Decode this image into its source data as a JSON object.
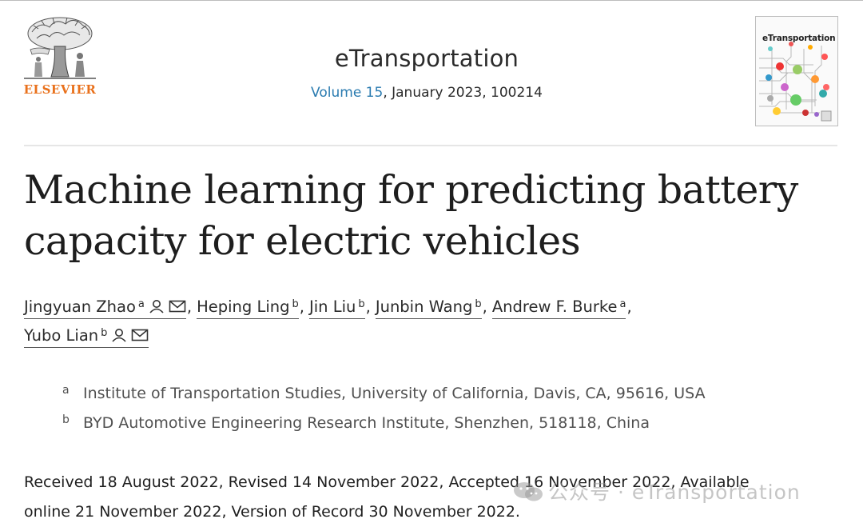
{
  "publisher": {
    "name": "ELSEVIER"
  },
  "journal": {
    "title": "eTransportation",
    "volume_link": "Volume 15",
    "issue_rest": ", January 2023, 100214",
    "cover_title": "eTransportation"
  },
  "article": {
    "title_line1": "Machine learning for predicting battery",
    "title_line2": "capacity for electric vehicles"
  },
  "authors": [
    {
      "name": "Jingyuan Zhao",
      "aff": "a",
      "icons": [
        "person-icon",
        "email-icon"
      ]
    },
    {
      "name": "Heping Ling",
      "aff": "b",
      "icons": []
    },
    {
      "name": "Jin Liu",
      "aff": "b",
      "icons": []
    },
    {
      "name": "Junbin Wang",
      "aff": "b",
      "icons": []
    },
    {
      "name": "Andrew F. Burke",
      "aff": "a",
      "icons": []
    },
    {
      "name": "Yubo Lian",
      "aff": "b",
      "icons": [
        "person-icon",
        "email-icon"
      ]
    }
  ],
  "affiliations": [
    {
      "label": "a",
      "text": "Institute of Transportation Studies, University of California, Davis, CA, 95616, USA"
    },
    {
      "label": "b",
      "text": "BYD Automotive Engineering Research Institute, Shenzhen, 518118, China"
    }
  ],
  "dates": {
    "line1": "Received 18 August 2022, Revised 14 November 2022, Accepted 16 November 2022, Available",
    "line2": "online 21 November 2022, Version of Record 30 November 2022."
  },
  "watermark": {
    "text": "公众号 · eTransportation"
  }
}
